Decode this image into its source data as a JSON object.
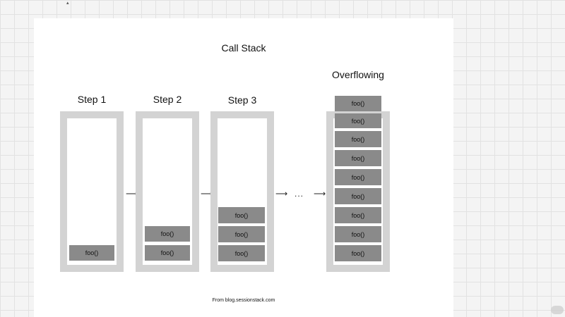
{
  "title": "Call Stack",
  "frame_label": "foo()",
  "columns": [
    {
      "label": "Step 1",
      "frames": 1
    },
    {
      "label": "Step 2",
      "frames": 2
    },
    {
      "label": "Step 3",
      "frames": 3
    },
    {
      "label": "Overflowing",
      "frames": 9
    }
  ],
  "ellipsis": "...",
  "arrow_glyph": "⟶",
  "source": "From blog.sessionstack.com",
  "colors": {
    "stack_border": "#d3d3d3",
    "frame_fill": "#8a8a8a",
    "slide_bg": "#ffffff"
  }
}
